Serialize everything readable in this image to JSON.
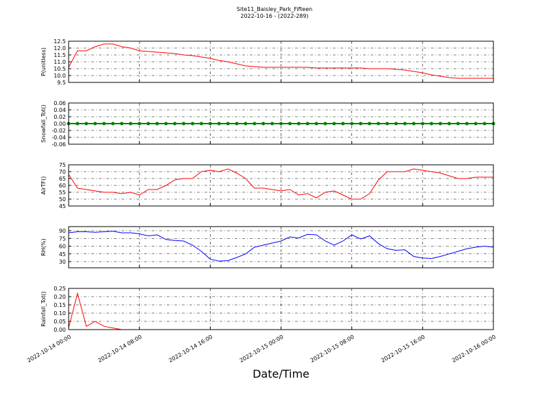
{
  "chart_data": [
    {
      "type": "line",
      "title": "Site11_Baisley_Park_Fifteen",
      "subtitle": "2022-10-16 - (2022-289)",
      "ylabel": "P(unitless)",
      "color": "#ff0000",
      "grid": true,
      "x": [
        "2022-10-14 00:00",
        "2022-10-14 01:00",
        "2022-10-14 02:00",
        "2022-10-14 03:00",
        "2022-10-14 04:00",
        "2022-10-14 05:00",
        "2022-10-14 06:00",
        "2022-10-14 07:00",
        "2022-10-14 08:00",
        "2022-10-14 09:00",
        "2022-10-14 10:00",
        "2022-10-14 11:00",
        "2022-10-14 12:00",
        "2022-10-14 13:00",
        "2022-10-14 14:00",
        "2022-10-14 15:00",
        "2022-10-14 16:00",
        "2022-10-14 17:00",
        "2022-10-14 18:00",
        "2022-10-14 19:00",
        "2022-10-14 20:00",
        "2022-10-14 21:00",
        "2022-10-14 22:00",
        "2022-10-14 23:00",
        "2022-10-15 00:00",
        "2022-10-15 01:00",
        "2022-10-15 02:00",
        "2022-10-15 03:00",
        "2022-10-15 04:00",
        "2022-10-15 05:00",
        "2022-10-15 06:00",
        "2022-10-15 07:00",
        "2022-10-15 08:00",
        "2022-10-15 09:00",
        "2022-10-15 10:00",
        "2022-10-15 11:00",
        "2022-10-15 12:00",
        "2022-10-15 13:00",
        "2022-10-15 14:00",
        "2022-10-15 15:00",
        "2022-10-15 16:00",
        "2022-10-15 17:00",
        "2022-10-15 18:00",
        "2022-10-15 19:00",
        "2022-10-15 20:00",
        "2022-10-15 21:00",
        "2022-10-15 22:00",
        "2022-10-15 23:00",
        "2022-10-16 00:00"
      ],
      "values": [
        10.6,
        11.8,
        11.8,
        12.1,
        12.3,
        12.3,
        12.1,
        12.0,
        11.8,
        11.75,
        11.7,
        11.65,
        11.6,
        11.5,
        11.45,
        11.35,
        11.25,
        11.1,
        11.0,
        10.85,
        10.7,
        10.65,
        10.6,
        10.6,
        10.6,
        10.6,
        10.6,
        10.6,
        10.55,
        10.55,
        10.55,
        10.55,
        10.55,
        10.55,
        10.5,
        10.5,
        10.5,
        10.45,
        10.4,
        10.3,
        10.2,
        10.05,
        9.95,
        9.85,
        9.8,
        9.8,
        9.8,
        9.8,
        9.8
      ],
      "xlim": [
        "2022-10-14 00:00",
        "2022-10-16 00:00"
      ],
      "xticks": [
        "2022-10-14 00:00",
        "2022-10-14 08:00",
        "2022-10-14 16:00",
        "2022-10-15 00:00",
        "2022-10-15 08:00",
        "2022-10-15 16:00",
        "2022-10-16 00:00"
      ],
      "ylim": [
        9.5,
        12.5
      ],
      "yticks": [
        9.5,
        {
          "value": 10,
          "label": "10.0"
        },
        10.5,
        {
          "value": 11,
          "label": "11.0"
        },
        11.5,
        {
          "value": 12,
          "label": "12.0"
        },
        12.5
      ]
    },
    {
      "type": "line",
      "ylabel": "Snowfall_Tot()",
      "color": "#008000",
      "marker": "circle",
      "grid": true,
      "x": [
        "2022-10-14 00:00",
        "2022-10-14 01:00",
        "2022-10-14 02:00",
        "2022-10-14 03:00",
        "2022-10-14 04:00",
        "2022-10-14 05:00",
        "2022-10-14 06:00",
        "2022-10-14 07:00",
        "2022-10-14 08:00",
        "2022-10-14 09:00",
        "2022-10-14 10:00",
        "2022-10-14 11:00",
        "2022-10-14 12:00",
        "2022-10-14 13:00",
        "2022-10-14 14:00",
        "2022-10-14 15:00",
        "2022-10-14 16:00",
        "2022-10-14 17:00",
        "2022-10-14 18:00",
        "2022-10-14 19:00",
        "2022-10-14 20:00",
        "2022-10-14 21:00",
        "2022-10-14 22:00",
        "2022-10-14 23:00",
        "2022-10-15 00:00",
        "2022-10-15 01:00",
        "2022-10-15 02:00",
        "2022-10-15 03:00",
        "2022-10-15 04:00",
        "2022-10-15 05:00",
        "2022-10-15 06:00",
        "2022-10-15 07:00",
        "2022-10-15 08:00",
        "2022-10-15 09:00",
        "2022-10-15 10:00",
        "2022-10-15 11:00",
        "2022-10-15 12:00",
        "2022-10-15 13:00",
        "2022-10-15 14:00",
        "2022-10-15 15:00",
        "2022-10-15 16:00",
        "2022-10-15 17:00",
        "2022-10-15 18:00",
        "2022-10-15 19:00",
        "2022-10-15 20:00",
        "2022-10-15 21:00",
        "2022-10-15 22:00",
        "2022-10-15 23:00",
        "2022-10-16 00:00"
      ],
      "values": [
        0,
        0,
        0,
        0,
        0,
        0,
        0,
        0,
        0,
        0,
        0,
        0,
        0,
        0,
        0,
        0,
        0,
        0,
        0,
        0,
        0,
        0,
        0,
        0,
        0,
        0,
        0,
        0,
        0,
        0,
        0,
        0,
        0,
        0,
        0,
        0,
        0,
        0,
        0,
        0,
        0,
        0,
        0,
        0,
        0,
        0,
        0,
        0,
        0
      ],
      "xlim": [
        "2022-10-14 00:00",
        "2022-10-16 00:00"
      ],
      "xticks": [
        "2022-10-14 00:00",
        "2022-10-14 08:00",
        "2022-10-14 16:00",
        "2022-10-15 00:00",
        "2022-10-15 08:00",
        "2022-10-15 16:00",
        "2022-10-16 00:00"
      ],
      "ylim": [
        -0.06,
        0.06
      ],
      "yticks": [
        -0.06,
        -0.04,
        -0.02,
        {
          "value": 0,
          "label": "0.00"
        },
        0.02,
        0.04,
        0.06
      ]
    },
    {
      "type": "line",
      "ylabel": "AirTF()",
      "color": "#ff0000",
      "grid": true,
      "x": [
        "2022-10-14 00:00",
        "2022-10-14 01:00",
        "2022-10-14 02:00",
        "2022-10-14 03:00",
        "2022-10-14 04:00",
        "2022-10-14 05:00",
        "2022-10-14 06:00",
        "2022-10-14 07:00",
        "2022-10-14 08:00",
        "2022-10-14 09:00",
        "2022-10-14 10:00",
        "2022-10-14 11:00",
        "2022-10-14 12:00",
        "2022-10-14 13:00",
        "2022-10-14 14:00",
        "2022-10-14 15:00",
        "2022-10-14 16:00",
        "2022-10-14 17:00",
        "2022-10-14 18:00",
        "2022-10-14 19:00",
        "2022-10-14 20:00",
        "2022-10-14 21:00",
        "2022-10-14 22:00",
        "2022-10-14 23:00",
        "2022-10-15 00:00",
        "2022-10-15 01:00",
        "2022-10-15 02:00",
        "2022-10-15 03:00",
        "2022-10-15 04:00",
        "2022-10-15 05:00",
        "2022-10-15 06:00",
        "2022-10-15 07:00",
        "2022-10-15 08:00",
        "2022-10-15 09:00",
        "2022-10-15 10:00",
        "2022-10-15 11:00",
        "2022-10-15 12:00",
        "2022-10-15 13:00",
        "2022-10-15 14:00",
        "2022-10-15 15:00",
        "2022-10-15 16:00",
        "2022-10-15 17:00",
        "2022-10-15 18:00",
        "2022-10-15 19:00",
        "2022-10-15 20:00",
        "2022-10-15 21:00",
        "2022-10-15 22:00",
        "2022-10-15 23:00",
        "2022-10-16 00:00"
      ],
      "values": [
        68,
        58,
        57,
        56,
        55,
        55,
        54,
        55,
        53,
        57,
        57,
        60,
        64,
        65,
        65,
        70,
        71,
        70,
        72,
        69,
        65,
        58,
        58,
        57,
        56,
        57,
        53,
        54,
        51,
        55,
        56,
        53,
        50,
        50,
        54,
        64,
        70,
        70,
        70,
        72,
        71,
        70,
        69,
        67,
        65,
        65,
        66,
        66,
        66
      ],
      "xlim": [
        "2022-10-14 00:00",
        "2022-10-16 00:00"
      ],
      "xticks": [
        "2022-10-14 00:00",
        "2022-10-14 08:00",
        "2022-10-14 16:00",
        "2022-10-15 00:00",
        "2022-10-15 08:00",
        "2022-10-15 16:00",
        "2022-10-16 00:00"
      ],
      "ylim": [
        45,
        75
      ],
      "yticks": [
        45,
        50,
        55,
        60,
        65,
        70,
        75
      ]
    },
    {
      "type": "line",
      "ylabel": "RH(%)",
      "color": "#0000ff",
      "grid": true,
      "x": [
        "2022-10-14 00:00",
        "2022-10-14 01:00",
        "2022-10-14 02:00",
        "2022-10-14 03:00",
        "2022-10-14 04:00",
        "2022-10-14 05:00",
        "2022-10-14 06:00",
        "2022-10-14 07:00",
        "2022-10-14 08:00",
        "2022-10-14 09:00",
        "2022-10-14 10:00",
        "2022-10-14 11:00",
        "2022-10-14 12:00",
        "2022-10-14 13:00",
        "2022-10-14 14:00",
        "2022-10-14 15:00",
        "2022-10-14 16:00",
        "2022-10-14 17:00",
        "2022-10-14 18:00",
        "2022-10-14 19:00",
        "2022-10-14 20:00",
        "2022-10-14 21:00",
        "2022-10-14 22:00",
        "2022-10-14 23:00",
        "2022-10-15 00:00",
        "2022-10-15 01:00",
        "2022-10-15 02:00",
        "2022-10-15 03:00",
        "2022-10-15 04:00",
        "2022-10-15 05:00",
        "2022-10-15 06:00",
        "2022-10-15 07:00",
        "2022-10-15 08:00",
        "2022-10-15 09:00",
        "2022-10-15 10:00",
        "2022-10-15 11:00",
        "2022-10-15 12:00",
        "2022-10-15 13:00",
        "2022-10-15 14:00",
        "2022-10-15 15:00",
        "2022-10-15 16:00",
        "2022-10-15 17:00",
        "2022-10-15 18:00",
        "2022-10-15 19:00",
        "2022-10-15 20:00",
        "2022-10-15 21:00",
        "2022-10-15 22:00",
        "2022-10-15 23:00",
        "2022-10-16 00:00"
      ],
      "values": [
        86,
        88,
        88,
        87,
        88,
        89,
        86,
        86,
        84,
        80,
        82,
        73,
        71,
        70,
        62,
        50,
        35,
        31,
        32,
        38,
        45,
        58,
        62,
        66,
        70,
        78,
        76,
        83,
        82,
        70,
        62,
        70,
        82,
        74,
        80,
        65,
        55,
        52,
        53,
        40,
        37,
        36,
        40,
        45,
        50,
        55,
        58,
        60,
        58
      ],
      "xlim": [
        "2022-10-14 00:00",
        "2022-10-16 00:00"
      ],
      "xticks": [
        "2022-10-14 00:00",
        "2022-10-14 08:00",
        "2022-10-14 16:00",
        "2022-10-15 00:00",
        "2022-10-15 08:00",
        "2022-10-15 16:00",
        "2022-10-16 00:00"
      ],
      "ylim": [
        18,
        98
      ],
      "yticks": [
        30,
        45,
        60,
        75,
        90
      ]
    },
    {
      "type": "line",
      "ylabel": "Rainfall_Tot()",
      "xlabel": "Date/Time",
      "color": "#ff0000",
      "grid": true,
      "x": [
        "2022-10-14 00:00",
        "2022-10-14 01:00",
        "2022-10-14 02:00",
        "2022-10-14 03:00",
        "2022-10-14 04:00",
        "2022-10-14 05:00",
        "2022-10-14 06:00",
        "2022-10-14 07:00",
        "2022-10-14 08:00",
        "2022-10-14 09:00",
        "2022-10-14 10:00",
        "2022-10-14 11:00",
        "2022-10-14 12:00",
        "2022-10-14 13:00",
        "2022-10-14 14:00",
        "2022-10-14 15:00",
        "2022-10-14 16:00",
        "2022-10-14 17:00",
        "2022-10-14 18:00",
        "2022-10-14 19:00",
        "2022-10-14 20:00",
        "2022-10-14 21:00",
        "2022-10-14 22:00",
        "2022-10-14 23:00",
        "2022-10-15 00:00",
        "2022-10-15 01:00",
        "2022-10-15 02:00",
        "2022-10-15 03:00",
        "2022-10-15 04:00",
        "2022-10-15 05:00",
        "2022-10-15 06:00",
        "2022-10-15 07:00",
        "2022-10-15 08:00",
        "2022-10-15 09:00",
        "2022-10-15 10:00",
        "2022-10-15 11:00",
        "2022-10-15 12:00",
        "2022-10-15 13:00",
        "2022-10-15 14:00",
        "2022-10-15 15:00",
        "2022-10-15 16:00",
        "2022-10-15 17:00",
        "2022-10-15 18:00",
        "2022-10-15 19:00",
        "2022-10-15 20:00",
        "2022-10-15 21:00",
        "2022-10-15 22:00",
        "2022-10-15 23:00",
        "2022-10-16 00:00"
      ],
      "values": [
        0.01,
        0.22,
        0.02,
        0.05,
        0.02,
        0.01,
        0,
        0,
        0,
        0,
        0,
        0,
        0,
        0,
        0,
        0,
        0,
        0,
        0,
        0,
        0,
        0,
        0,
        0,
        0,
        0,
        0,
        0,
        0,
        0,
        0,
        0,
        0,
        0,
        0,
        0,
        0,
        0,
        0,
        0,
        0,
        0,
        0,
        0,
        0,
        0,
        0,
        0,
        0
      ],
      "xlim": [
        "2022-10-14 00:00",
        "2022-10-16 00:00"
      ],
      "xticks": [
        "2022-10-14 00:00",
        "2022-10-14 08:00",
        "2022-10-14 16:00",
        "2022-10-15 00:00",
        "2022-10-15 08:00",
        "2022-10-15 16:00",
        "2022-10-16 00:00"
      ],
      "ylim": [
        0,
        0.25
      ],
      "yticks": [
        {
          "value": 0,
          "label": "0.00"
        },
        0.05,
        {
          "value": 0.1,
          "label": "0.10"
        },
        0.15,
        {
          "value": 0.2,
          "label": "0.20"
        },
        0.25
      ]
    }
  ]
}
